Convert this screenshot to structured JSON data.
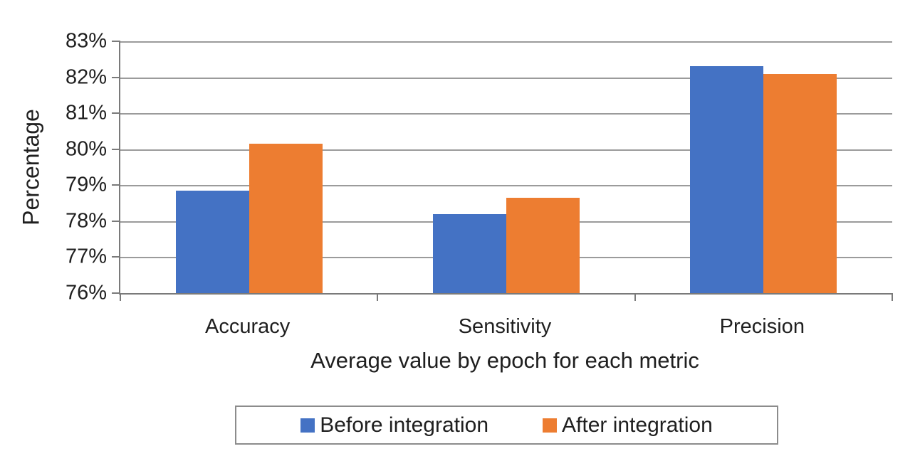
{
  "chart_data": {
    "type": "bar",
    "title": "",
    "categories": [
      "Accuracy",
      "Sensitivity",
      "Precision"
    ],
    "series": [
      {
        "name": "Before integration",
        "color": "#4472C4",
        "values": [
          78.85,
          78.2,
          82.3
        ]
      },
      {
        "name": "After integration",
        "color": "#ED7D31",
        "values": [
          80.15,
          78.65,
          82.1
        ]
      }
    ],
    "xlabel": "Average value by epoch for each metric",
    "ylabel": "Percentage",
    "ylim": [
      76,
      83
    ],
    "ytick_step": 1,
    "ytick_labels_top_to_bottom": [
      "83%",
      "82%",
      "81%",
      "80%",
      "79%",
      "78%",
      "77%",
      "76%"
    ],
    "grid": true,
    "legend_position": "bottom-center"
  },
  "colors": {
    "background": "#ffffff",
    "text": "#1f1f1f",
    "gridline": "#9b9b9b",
    "axis_line": "#7a7a7a",
    "legend_border": "#8c8c8c",
    "series_before": "#4472C4",
    "series_after": "#ED7D31"
  }
}
